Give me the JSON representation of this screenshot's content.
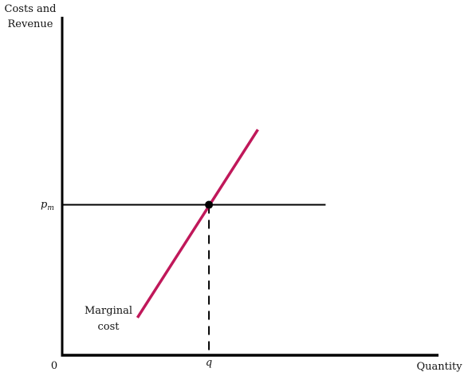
{
  "chart_data": {
    "type": "line",
    "ylabel_lines": [
      "Costs and",
      "Revenue"
    ],
    "xlabel": "Quantity",
    "origin_label": "0",
    "ytick_label": {
      "main": "p",
      "sub": "m"
    },
    "xtick_label": "q",
    "series": [
      {
        "name": "Marginal cost",
        "name_lines": [
          "Marginal",
          "cost"
        ],
        "color": "#c0185a",
        "points": [
          [
            0.2,
            0.25
          ],
          [
            0.52,
            1.5
          ]
        ]
      }
    ],
    "price_line": {
      "y": 1.0,
      "x_end": 0.7,
      "color": "#000000"
    },
    "equilibrium": {
      "x": 0.39,
      "y": 1.0
    },
    "xlim": [
      0,
      1
    ],
    "ylim": [
      0,
      2.25
    ]
  }
}
